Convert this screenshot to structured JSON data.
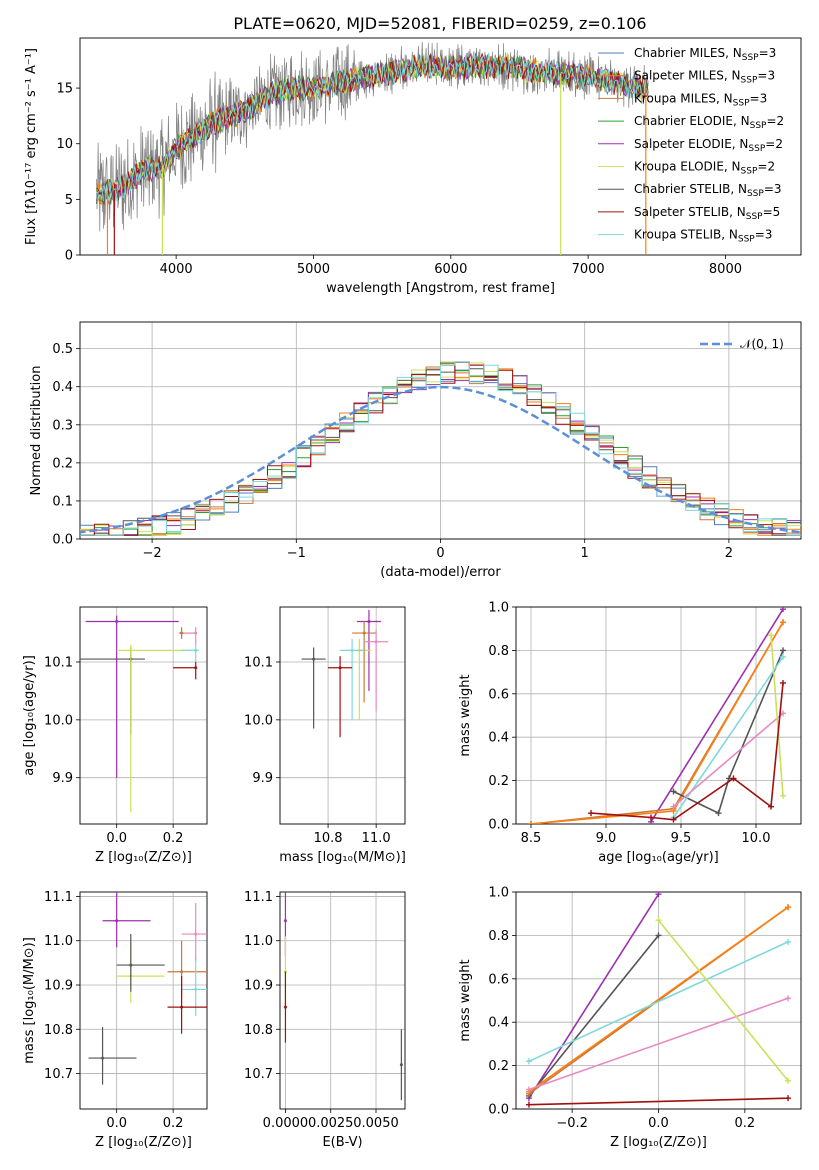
{
  "figure": {
    "title": "PLATE=0620, MJD=52081, FIBERID=0259, z=0.106"
  },
  "legend": [
    {
      "label": "Chabrier MILES, N",
      "sub": "SSP",
      "suffix": "=3",
      "color": "#4f7fb8"
    },
    {
      "label": "Salpeter MILES, N",
      "sub": "SSP",
      "suffix": "=3",
      "color": "#ff7f0e"
    },
    {
      "label": "Kroupa MILES, N",
      "sub": "SSP",
      "suffix": "=3",
      "color": "#c77a3a"
    },
    {
      "label": "Chabrier ELODIE, N",
      "sub": "SSP",
      "suffix": "=2",
      "color": "#2ca02c"
    },
    {
      "label": "Salpeter ELODIE, N",
      "sub": "SSP",
      "suffix": "=2",
      "color": "#9b30b0"
    },
    {
      "label": "Kroupa ELODIE, N",
      "sub": "SSP",
      "suffix": "=2",
      "color": "#cde05a"
    },
    {
      "label": "Chabrier STELIB, N",
      "sub": "SSP",
      "suffix": "=3",
      "color": "#555555"
    },
    {
      "label": "Salpeter STELIB, N",
      "sub": "SSP",
      "suffix": "=5",
      "color": "#a01010"
    },
    {
      "label": "Kroupa STELIB, N",
      "sub": "SSP",
      "suffix": "=3",
      "color": "#7fd8dc"
    }
  ],
  "chart_data": [
    {
      "type": "line",
      "id": "spectrum",
      "xlabel": "wavelength [Angstrom, rest frame]",
      "ylabel": "Flux [fλ10⁻¹⁷ erg cm⁻² s⁻¹ A⁻¹]",
      "xlim": [
        3300,
        8550
      ],
      "ylim": [
        0,
        19.5
      ],
      "xticks": [
        4000,
        5000,
        6000,
        7000,
        8000
      ],
      "yticks": [
        0,
        5,
        10,
        15
      ],
      "series_model_anchors": {
        "x": [
          3450,
          3600,
          3750,
          3900,
          4000,
          4100,
          4300,
          4500,
          4700,
          4860,
          5000,
          5200,
          5400,
          5600,
          5800,
          6000,
          6200,
          6400,
          6600,
          6800,
          7000,
          7200,
          7400
        ],
        "y": [
          5.5,
          6.0,
          7.5,
          8.0,
          9.5,
          10.5,
          12.0,
          13.0,
          14.5,
          15.0,
          15.0,
          15.5,
          16.0,
          16.5,
          17.0,
          16.8,
          17.0,
          17.0,
          16.5,
          16.3,
          16.0,
          15.5,
          15.0
        ]
      },
      "notes": "Observed spectrum (gray) with nine SSP model fits overlaid"
    },
    {
      "type": "step",
      "id": "residuals",
      "xlabel": "(data-model)/error",
      "ylabel": "Normed distribution",
      "xlim": [
        -2.5,
        2.5
      ],
      "ylim": [
        0,
        0.57
      ],
      "xticks": [
        -2,
        -1,
        0,
        1,
        2
      ],
      "yticks": [
        0.0,
        0.1,
        0.2,
        0.3,
        0.4,
        0.5
      ],
      "gaussian_label": "𝒩(0, 1)",
      "gaussian_color": "#5b8fd8"
    },
    {
      "type": "scatter",
      "id": "age-vs-Z",
      "xlabel": "Z [log₁₀(Z/Z⊙)]",
      "ylabel": "age  [log₁₀(age/yr)]",
      "xlim": [
        -0.13,
        0.32
      ],
      "ylim": [
        9.82,
        10.195
      ],
      "xticks": [
        0.0,
        0.2
      ],
      "yticks": [
        9.9,
        10.0,
        10.1
      ],
      "points": [
        {
          "x": 0.05,
          "y": 10.105,
          "xerr": [
            0.18,
            0.05
          ],
          "yerr": [
            0.13,
            0.02
          ],
          "color": "#555555"
        },
        {
          "x": 0.0,
          "y": 10.17,
          "xerr": [
            0.11,
            0.22
          ],
          "yerr": [
            0.27,
            0.01
          ],
          "color": "#9b30b0"
        },
        {
          "x": 0.05,
          "y": 10.12,
          "xerr": [
            0.05,
            0.22
          ],
          "yerr": [
            0.28,
            0.01
          ],
          "color": "#cde05a"
        },
        {
          "x": 0.23,
          "y": 10.15,
          "xerr": [
            0.01,
            0.05
          ],
          "yerr": [
            0.01,
            0.01
          ],
          "color": "#c77a3a"
        },
        {
          "x": 0.28,
          "y": 10.12,
          "xerr": [
            0.05,
            0.01
          ],
          "yerr": [
            0.02,
            0.01
          ],
          "color": "#7fd8dc"
        },
        {
          "x": 0.28,
          "y": 10.09,
          "xerr": [
            0.08,
            0.0
          ],
          "yerr": [
            0.02,
            0.01
          ],
          "color": "#a01010"
        },
        {
          "x": 0.28,
          "y": 10.15,
          "xerr": [
            0.04,
            0.0
          ],
          "yerr": [
            0.02,
            0.01
          ],
          "color": "#e78ac3"
        }
      ]
    },
    {
      "type": "scatter",
      "id": "age-vs-mass",
      "xlabel": "mass [log₁₀(M/M⊙)]",
      "ylabel": "",
      "xlim": [
        10.6,
        11.12
      ],
      "ylim": [
        9.82,
        10.195
      ],
      "xticks": [
        10.8,
        11.0
      ],
      "yticks": [
        9.9,
        10.0,
        10.1
      ],
      "points": [
        {
          "x": 10.74,
          "y": 10.105,
          "color": "#555555"
        },
        {
          "x": 10.97,
          "y": 10.17,
          "color": "#9b30b0"
        },
        {
          "x": 10.93,
          "y": 10.12,
          "color": "#cde05a"
        },
        {
          "x": 10.95,
          "y": 10.15,
          "color": "#c77a3a"
        },
        {
          "x": 10.9,
          "y": 10.12,
          "color": "#7fd8dc"
        },
        {
          "x": 10.85,
          "y": 10.09,
          "color": "#a01010"
        },
        {
          "x": 11.0,
          "y": 10.135,
          "color": "#e78ac3"
        }
      ]
    },
    {
      "type": "line",
      "id": "weight-vs-age",
      "xlabel": "age  [log₁₀(age/yr)]",
      "ylabel": "mass weight",
      "xlim": [
        8.4,
        10.3
      ],
      "ylim": [
        0.0,
        1.0
      ],
      "xticks": [
        8.5,
        9.0,
        9.5,
        10.0
      ],
      "yticks": [
        0.0,
        0.2,
        0.4,
        0.6,
        0.8,
        1.0
      ],
      "series": [
        {
          "color": "#9b30b0",
          "x": [
            9.3,
            10.18
          ],
          "y": [
            0.01,
            0.99
          ]
        },
        {
          "color": "#c77a3a",
          "x": [
            8.5,
            9.45,
            10.18
          ],
          "y": [
            0.0,
            0.07,
            0.93
          ]
        },
        {
          "color": "#ff7f0e",
          "x": [
            8.5,
            9.45,
            10.18
          ],
          "y": [
            0.0,
            0.06,
            0.93
          ]
        },
        {
          "color": "#555555",
          "x": [
            9.45,
            9.75,
            9.82,
            10.18
          ],
          "y": [
            0.15,
            0.05,
            0.21,
            0.8
          ]
        },
        {
          "color": "#7fd8dc",
          "x": [
            9.45,
            10.18
          ],
          "y": [
            0.03,
            0.77
          ]
        },
        {
          "color": "#e78ac3",
          "x": [
            9.45,
            10.18
          ],
          "y": [
            0.08,
            0.51
          ]
        },
        {
          "color": "#cde05a",
          "x": [
            10.1,
            10.18
          ],
          "y": [
            0.87,
            0.13
          ]
        },
        {
          "color": "#a01010",
          "x": [
            8.9,
            9.3,
            9.45,
            9.85,
            10.1,
            10.18
          ],
          "y": [
            0.05,
            0.03,
            0.02,
            0.21,
            0.08,
            0.65
          ]
        }
      ]
    },
    {
      "type": "scatter",
      "id": "mass-vs-Z",
      "xlabel": "Z [log₁₀(Z/Z⊙)]",
      "ylabel": "mass [log₁₀(M/M⊙)]",
      "xlim": [
        -0.13,
        0.32
      ],
      "ylim": [
        10.62,
        11.11
      ],
      "xticks": [
        0.0,
        0.2
      ],
      "yticks": [
        10.7,
        10.8,
        10.9,
        11.0,
        11.1
      ],
      "points": [
        {
          "x": -0.05,
          "y": 10.735,
          "color": "#555555"
        },
        {
          "x": 0.0,
          "y": 11.045,
          "color": "#9b30b0"
        },
        {
          "x": 0.05,
          "y": 10.92,
          "color": "#cde05a"
        },
        {
          "x": 0.05,
          "y": 10.945,
          "color": "#555555"
        },
        {
          "x": 0.23,
          "y": 10.93,
          "color": "#c77a3a"
        },
        {
          "x": 0.28,
          "y": 10.89,
          "color": "#7fd8dc"
        },
        {
          "x": 0.23,
          "y": 10.85,
          "color": "#a01010"
        },
        {
          "x": 0.28,
          "y": 11.015,
          "color": "#e78ac3"
        }
      ]
    },
    {
      "type": "scatter",
      "id": "mass-vs-ebv",
      "xlabel": "E(B-V)",
      "ylabel": "",
      "xlim": [
        -0.0003,
        0.0066
      ],
      "ylim": [
        10.62,
        11.11
      ],
      "xticks": [
        0.0,
        0.0025,
        0.005
      ],
      "xticklabels": [
        "0.0000",
        "0.0025",
        "0.0050"
      ],
      "yticks": [
        10.7,
        10.8,
        10.9,
        11.0,
        11.1
      ],
      "points": [
        {
          "x": 0.0,
          "y": 11.045,
          "color": "#9b30b0"
        },
        {
          "x": 0.0,
          "y": 10.93,
          "color": "#cde05a"
        },
        {
          "x": 0.0,
          "y": 10.85,
          "color": "#a01010"
        },
        {
          "x": 0.0064,
          "y": 10.72,
          "color": "#555555"
        }
      ]
    },
    {
      "type": "line",
      "id": "weight-vs-Z",
      "xlabel": "Z [log₁₀(Z/Z⊙)]",
      "ylabel": "mass weight",
      "xlim": [
        -0.33,
        0.33
      ],
      "ylim": [
        0.0,
        1.0
      ],
      "xticks": [
        -0.2,
        0.0,
        0.2
      ],
      "yticks": [
        0.0,
        0.2,
        0.4,
        0.6,
        0.8,
        1.0
      ],
      "series": [
        {
          "color": "#9b30b0",
          "x": [
            -0.3,
            0.0
          ],
          "y": [
            0.05,
            0.99
          ]
        },
        {
          "color": "#555555",
          "x": [
            -0.3,
            0.0
          ],
          "y": [
            0.06,
            0.8
          ]
        },
        {
          "color": "#c77a3a",
          "x": [
            -0.3,
            0.3
          ],
          "y": [
            0.07,
            0.93
          ]
        },
        {
          "color": "#ff7f0e",
          "x": [
            -0.3,
            0.3
          ],
          "y": [
            0.08,
            0.93
          ]
        },
        {
          "color": "#7fd8dc",
          "x": [
            -0.3,
            0.3
          ],
          "y": [
            0.22,
            0.77
          ]
        },
        {
          "color": "#e78ac3",
          "x": [
            -0.3,
            0.3
          ],
          "y": [
            0.09,
            0.51
          ]
        },
        {
          "color": "#cde05a",
          "x": [
            0.0,
            0.3
          ],
          "y": [
            0.87,
            0.13
          ]
        },
        {
          "color": "#a01010",
          "x": [
            -0.3,
            0.3
          ],
          "y": [
            0.02,
            0.05
          ]
        }
      ]
    }
  ]
}
